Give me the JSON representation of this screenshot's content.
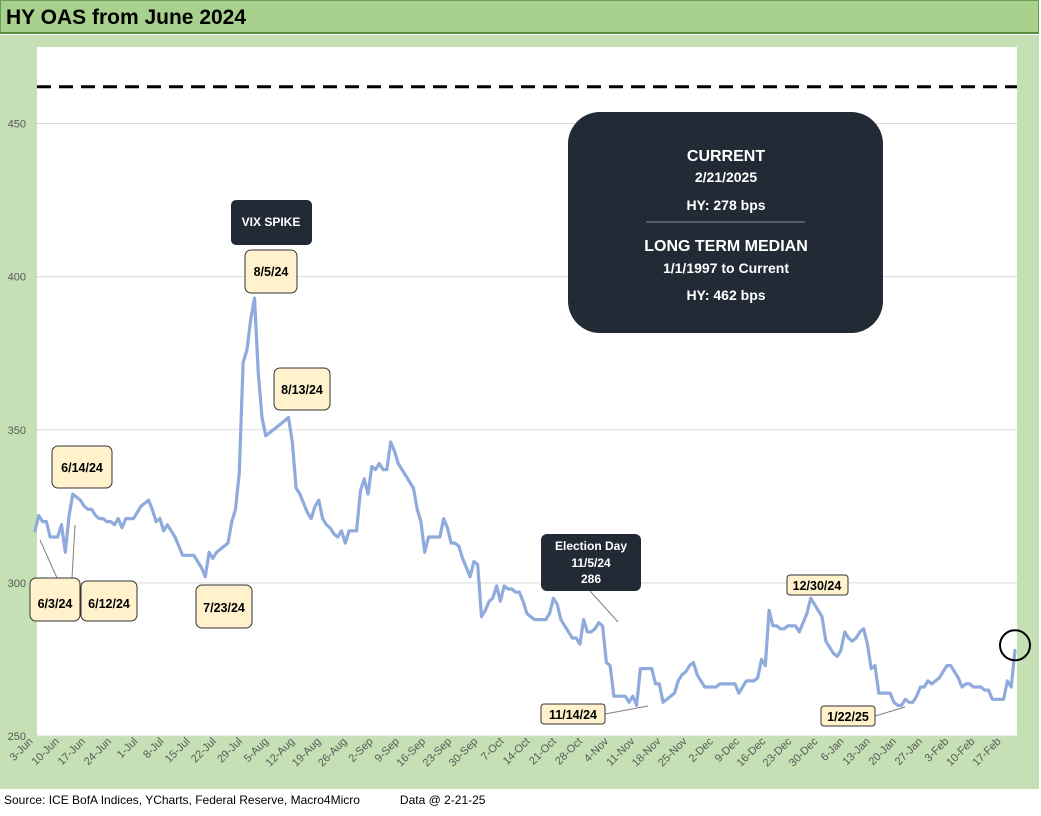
{
  "header": {
    "title": "HY OAS from June 2024"
  },
  "footer": {
    "source": "Source: ICE BofA Indices, YCharts, Federal Reserve, Macro4Micro",
    "data_as_of": "Data @ 2-21-25"
  },
  "chart_data": {
    "type": "line",
    "title": "HY OAS from June 2024",
    "xlabel": "",
    "ylabel": "",
    "ylim": [
      250,
      475
    ],
    "yticks": [
      250,
      300,
      350,
      400,
      450
    ],
    "grid": "horizontal",
    "x_tick_labels": [
      "3-Jun",
      "10-Jun",
      "17-Jun",
      "24-Jun",
      "1-Jul",
      "8-Jul",
      "15-Jul",
      "22-Jul",
      "29-Jul",
      "5-Aug",
      "12-Aug",
      "19-Aug",
      "26-Aug",
      "2-Sep",
      "9-Sep",
      "16-Sep",
      "23-Sep",
      "30-Sep",
      "7-Oct",
      "14-Oct",
      "21-Oct",
      "28-Oct",
      "4-Nov",
      "11-Nov",
      "18-Nov",
      "25-Nov",
      "2-Dec",
      "9-Dec",
      "16-Dec",
      "23-Dec",
      "30-Dec",
      "6-Jan",
      "13-Jan",
      "20-Jan",
      "27-Jan",
      "3-Feb",
      "10-Feb",
      "17-Feb"
    ],
    "line_color": "#8faadc",
    "series": [
      {
        "values": [
          317,
          322,
          320,
          320,
          315,
          315,
          315,
          319,
          310,
          322,
          329,
          328,
          327,
          325,
          324,
          324,
          322,
          321,
          321,
          320,
          320,
          319,
          321,
          318,
          321,
          321,
          321,
          323,
          325,
          326,
          327,
          324,
          320,
          321,
          317,
          319,
          317,
          315,
          312,
          309,
          309,
          309,
          309,
          307,
          305,
          302,
          310,
          308,
          310,
          311,
          312,
          313,
          320,
          324,
          336,
          372,
          376,
          386,
          393,
          369,
          354,
          348,
          349,
          350,
          351,
          352,
          353,
          354,
          346,
          331,
          329,
          326,
          323,
          321,
          325,
          327,
          321,
          319,
          318,
          316,
          315,
          317,
          313,
          317,
          317,
          317,
          330,
          334,
          329,
          338,
          337,
          339,
          337,
          337,
          346,
          343,
          339,
          337,
          335,
          333,
          331,
          324,
          320,
          310,
          315,
          315,
          315,
          315,
          321,
          318,
          313,
          313,
          312,
          308,
          305,
          302,
          307,
          306,
          289,
          291,
          294,
          295,
          299,
          294,
          299,
          298,
          298,
          297,
          297,
          294,
          290,
          289,
          288,
          288,
          288,
          288,
          290,
          295,
          293,
          288,
          286,
          284,
          282,
          282,
          280,
          288,
          284,
          284,
          285,
          287,
          286,
          274,
          273,
          263,
          263,
          263,
          263,
          261,
          263,
          260,
          272,
          272,
          272,
          272,
          267,
          267,
          261,
          262,
          263,
          264,
          268,
          270,
          271,
          273,
          274,
          270,
          268,
          266,
          266,
          266,
          266,
          267,
          267,
          267,
          267,
          267,
          264,
          266,
          268,
          268,
          268,
          269,
          275,
          273,
          291,
          286,
          286,
          285,
          285,
          286,
          286,
          286,
          284,
          287,
          290,
          295,
          293,
          291,
          289,
          281,
          279,
          277,
          276,
          278,
          284,
          282,
          281,
          282,
          284,
          285,
          280,
          272,
          273,
          264,
          264,
          264,
          264,
          261,
          260,
          260,
          262,
          261,
          261,
          263,
          266,
          266,
          268,
          267,
          268,
          269,
          271,
          273,
          273,
          271,
          269,
          266,
          267,
          267,
          266,
          266,
          266,
          265,
          265,
          262,
          262,
          262,
          262,
          268,
          266,
          278
        ]
      }
    ],
    "reference_line": {
      "value": 462,
      "style": "dashed"
    },
    "annotations": {
      "vix": "VIX SPIKE",
      "d_8_5": "8/5/24",
      "d_8_13": "8/13/24",
      "d_6_14": "6/14/24",
      "d_6_3": "6/3/24",
      "d_6_12": "6/12/24",
      "d_7_23": "7/23/24",
      "election_title": "Election Day",
      "election_date": "11/5/24",
      "election_value": "286",
      "d_11_14": "11/14/24",
      "d_12_30": "12/30/24",
      "d_1_22": "1/22/25"
    },
    "info_box": {
      "current_title": "CURRENT",
      "current_date": "2/21/2025",
      "current_value": "HY: 278 bps",
      "median_title": "LONG TERM MEDIAN",
      "median_range": "1/1/1997 to Current",
      "median_value": "HY: 462 bps"
    }
  }
}
